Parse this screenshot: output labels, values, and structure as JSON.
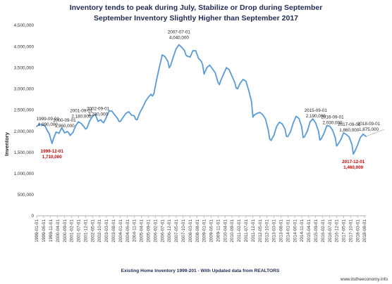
{
  "chart_data": {
    "type": "line",
    "title_line1": "Inventory tends to peak during July,  Stabilize or Drop during September",
    "title_line2": "September Inventory Slightly Higher than September 2017",
    "ylabel": "Inventory",
    "xlabel": "Existing Home Inventory 1999-201 - With Updated data from REALTORS",
    "source": "www.itstheeconomy.info",
    "ylim": [
      0,
      4500000
    ],
    "y_ticks": [
      "0",
      "500,000",
      "1,000,000",
      "1,500,000",
      "2,000,000",
      "2,500,000",
      "3,000,000",
      "3,500,000",
      "4,000,000",
      "4,500,000"
    ],
    "y_tick_values": [
      0,
      500000,
      1000000,
      1500000,
      2000000,
      2500000,
      3000000,
      3500000,
      4000000,
      4500000
    ],
    "x_start": "1999-01",
    "x_end": "2018-09",
    "x_ticks": [
      "1999-01-01",
      "1999-06-01",
      "1999-11-01",
      "2000-04-01",
      "2000-09-01",
      "2001-02-01",
      "2001-07-01",
      "2001-12-01",
      "2002-05-01",
      "2002-10-01",
      "2003-03-01",
      "2003-08-01",
      "2004-01-01",
      "2004-06-01",
      "2004-11-01",
      "2005-04-01",
      "2005-09-01",
      "2006-02-01",
      "2006-07-01",
      "2006-12-01",
      "2007-05-01",
      "2007-10-01",
      "2008-03-01",
      "2008-08-01",
      "2009-01-01",
      "2009-06-01",
      "2009-11-01",
      "2010-04-01",
      "2010-09-01",
      "2011-02-01",
      "2011-07-01",
      "2011-12-01",
      "2012-05-01",
      "2012-10-01",
      "2013-03-01",
      "2013-08-01",
      "2014-01-01",
      "2014-06-01",
      "2014-11-01",
      "2015-04-01",
      "2015-09-01",
      "2016-02-01",
      "2016-07-01",
      "2016-12-01",
      "2017-05-01",
      "2017-10-01",
      "2018-03-01",
      "2018-08-01"
    ],
    "series": [
      {
        "color": "#5b9bd5",
        "points": [
          [
            "1999-01",
            2110000
          ],
          [
            "1999-03",
            2170000
          ],
          [
            "1999-05",
            2150000
          ],
          [
            "1999-07",
            2120000
          ],
          [
            "1999-09",
            1990000
          ],
          [
            "1999-10",
            1940000
          ],
          [
            "1999-11",
            1820000
          ],
          [
            "1999-12",
            1710000
          ],
          [
            "2000-01",
            1820000
          ],
          [
            "2000-03",
            1980000
          ],
          [
            "2000-05",
            1950000
          ],
          [
            "2000-07",
            2080000
          ],
          [
            "2000-09",
            1960000
          ],
          [
            "2000-11",
            1990000
          ],
          [
            "2000-12",
            1960000
          ],
          [
            "2001-01",
            1900000
          ],
          [
            "2001-03",
            1970000
          ],
          [
            "2001-05",
            2130000
          ],
          [
            "2001-07",
            2220000
          ],
          [
            "2001-09",
            2180000
          ],
          [
            "2001-11",
            2100000
          ],
          [
            "2001-12",
            2050000
          ],
          [
            "2002-01",
            2070000
          ],
          [
            "2002-03",
            2240000
          ],
          [
            "2002-05",
            2350000
          ],
          [
            "2002-07",
            2400000
          ],
          [
            "2002-09",
            2230000
          ],
          [
            "2002-11",
            2270000
          ],
          [
            "2002-12",
            2220000
          ],
          [
            "2003-01",
            2200000
          ],
          [
            "2003-03",
            2330000
          ],
          [
            "2003-05",
            2480000
          ],
          [
            "2003-07",
            2470000
          ],
          [
            "2003-09",
            2380000
          ],
          [
            "2003-11",
            2300000
          ],
          [
            "2003-12",
            2230000
          ],
          [
            "2004-01",
            2230000
          ],
          [
            "2004-03",
            2330000
          ],
          [
            "2004-05",
            2420000
          ],
          [
            "2004-07",
            2460000
          ],
          [
            "2004-09",
            2380000
          ],
          [
            "2004-11",
            2360000
          ],
          [
            "2004-12",
            2280000
          ],
          [
            "2005-01",
            2270000
          ],
          [
            "2005-03",
            2440000
          ],
          [
            "2005-05",
            2560000
          ],
          [
            "2005-07",
            2700000
          ],
          [
            "2005-09",
            2800000
          ],
          [
            "2005-11",
            2870000
          ],
          [
            "2005-12",
            2830000
          ],
          [
            "2006-01",
            2880000
          ],
          [
            "2006-03",
            3220000
          ],
          [
            "2006-05",
            3520000
          ],
          [
            "2006-07",
            3800000
          ],
          [
            "2006-09",
            3760000
          ],
          [
            "2006-11",
            3650000
          ],
          [
            "2006-12",
            3500000
          ],
          [
            "2007-01",
            3550000
          ],
          [
            "2007-03",
            3760000
          ],
          [
            "2007-05",
            3950000
          ],
          [
            "2007-07",
            4040000
          ],
          [
            "2007-09",
            3980000
          ],
          [
            "2007-11",
            3900000
          ],
          [
            "2007-12",
            3800000
          ],
          [
            "2008-01",
            3770000
          ],
          [
            "2008-03",
            3750000
          ],
          [
            "2008-05",
            3900000
          ],
          [
            "2008-07",
            3900000
          ],
          [
            "2008-09",
            3720000
          ],
          [
            "2008-11",
            3650000
          ],
          [
            "2008-12",
            3560000
          ],
          [
            "2009-01",
            3350000
          ],
          [
            "2009-03",
            3500000
          ],
          [
            "2009-05",
            3560000
          ],
          [
            "2009-07",
            3470000
          ],
          [
            "2009-09",
            3380000
          ],
          [
            "2009-11",
            3150000
          ],
          [
            "2009-12",
            3100000
          ],
          [
            "2010-01",
            3200000
          ],
          [
            "2010-03",
            3350000
          ],
          [
            "2010-05",
            3500000
          ],
          [
            "2010-07",
            3450000
          ],
          [
            "2010-09",
            3300000
          ],
          [
            "2010-11",
            3150000
          ],
          [
            "2010-12",
            3020000
          ],
          [
            "2011-01",
            3000000
          ],
          [
            "2011-03",
            3140000
          ],
          [
            "2011-05",
            3220000
          ],
          [
            "2011-07",
            3180000
          ],
          [
            "2011-09",
            2960000
          ],
          [
            "2011-11",
            2700000
          ],
          [
            "2011-12",
            2330000
          ],
          [
            "2012-01",
            2380000
          ],
          [
            "2012-03",
            2420000
          ],
          [
            "2012-05",
            2440000
          ],
          [
            "2012-07",
            2390000
          ],
          [
            "2012-09",
            2290000
          ],
          [
            "2012-11",
            2030000
          ],
          [
            "2012-12",
            1820000
          ],
          [
            "2013-01",
            1780000
          ],
          [
            "2013-03",
            1900000
          ],
          [
            "2013-05",
            2110000
          ],
          [
            "2013-07",
            2210000
          ],
          [
            "2013-09",
            2170000
          ],
          [
            "2013-11",
            2050000
          ],
          [
            "2013-12",
            1880000
          ],
          [
            "2014-01",
            1870000
          ],
          [
            "2014-03",
            1990000
          ],
          [
            "2014-05",
            2200000
          ],
          [
            "2014-07",
            2350000
          ],
          [
            "2014-09",
            2300000
          ],
          [
            "2014-11",
            2100000
          ],
          [
            "2014-12",
            1850000
          ],
          [
            "2015-01",
            1870000
          ],
          [
            "2015-03",
            2000000
          ],
          [
            "2015-05",
            2220000
          ],
          [
            "2015-07",
            2290000
          ],
          [
            "2015-09",
            2190000
          ],
          [
            "2015-11",
            2000000
          ],
          [
            "2015-12",
            1790000
          ],
          [
            "2016-01",
            1820000
          ],
          [
            "2016-03",
            1950000
          ],
          [
            "2016-05",
            2130000
          ],
          [
            "2016-07",
            2120000
          ],
          [
            "2016-09",
            2030000
          ],
          [
            "2016-11",
            1850000
          ],
          [
            "2016-12",
            1650000
          ],
          [
            "2017-01",
            1690000
          ],
          [
            "2017-03",
            1800000
          ],
          [
            "2017-05",
            1960000
          ],
          [
            "2017-07",
            1920000
          ],
          [
            "2017-09",
            1860000
          ],
          [
            "2017-11",
            1680000
          ],
          [
            "2017-12",
            1460000
          ],
          [
            "2018-01",
            1520000
          ],
          [
            "2018-03",
            1670000
          ],
          [
            "2018-05",
            1850000
          ],
          [
            "2018-07",
            1930000
          ],
          [
            "2018-09",
            1875000
          ]
        ]
      }
    ],
    "annotations": [
      {
        "date": "1999-09",
        "value": 1990000,
        "date_label": "1999-09-01",
        "value_label": "1,990,000",
        "color": "#222222",
        "position": "above"
      },
      {
        "date": "1999-12",
        "value": 1710000,
        "date_label": "1999-12-01",
        "value_label": "1,710,000",
        "color": "#cc0000",
        "position": "below"
      },
      {
        "date": "2000-09",
        "value": 1960000,
        "date_label": "2000-09-01",
        "value_label": "1,960,000",
        "color": "#222222",
        "position": "above"
      },
      {
        "date": "2001-09",
        "value": 2180000,
        "date_label": "2001-09-01",
        "value_label": "2,180,000",
        "color": "#222222",
        "position": "above"
      },
      {
        "date": "2002-09",
        "value": 2230000,
        "date_label": "2002-09-01",
        "value_label": "2,230,000",
        "color": "#222222",
        "position": "above"
      },
      {
        "date": "2007-07",
        "value": 4040000,
        "date_label": "2007-07-01",
        "value_label": "4,040,000",
        "color": "#222222",
        "position": "above"
      },
      {
        "date": "2015-09",
        "value": 2190000,
        "date_label": "2015-09-01",
        "value_label": "2,190,000",
        "color": "#222222",
        "position": "above"
      },
      {
        "date": "2016-09",
        "value": 2030000,
        "date_label": "2016-09-01",
        "value_label": "2,030,000",
        "color": "#222222",
        "position": "above"
      },
      {
        "date": "2017-09",
        "value": 1860000,
        "date_label": "2017-09-01",
        "value_label": "1,860,000",
        "color": "#222222",
        "position": "above"
      },
      {
        "date": "2017-12",
        "value": 1460000,
        "date_label": "2017-12-01",
        "value_label": "1,460,000",
        "color": "#cc0000",
        "position": "below"
      },
      {
        "date": "2018-09",
        "value": 1875000,
        "date_label": "2018-09-01",
        "value_label": "1,875,000",
        "color": "#222222",
        "position": "above"
      }
    ],
    "grid": false,
    "legend": "none"
  }
}
